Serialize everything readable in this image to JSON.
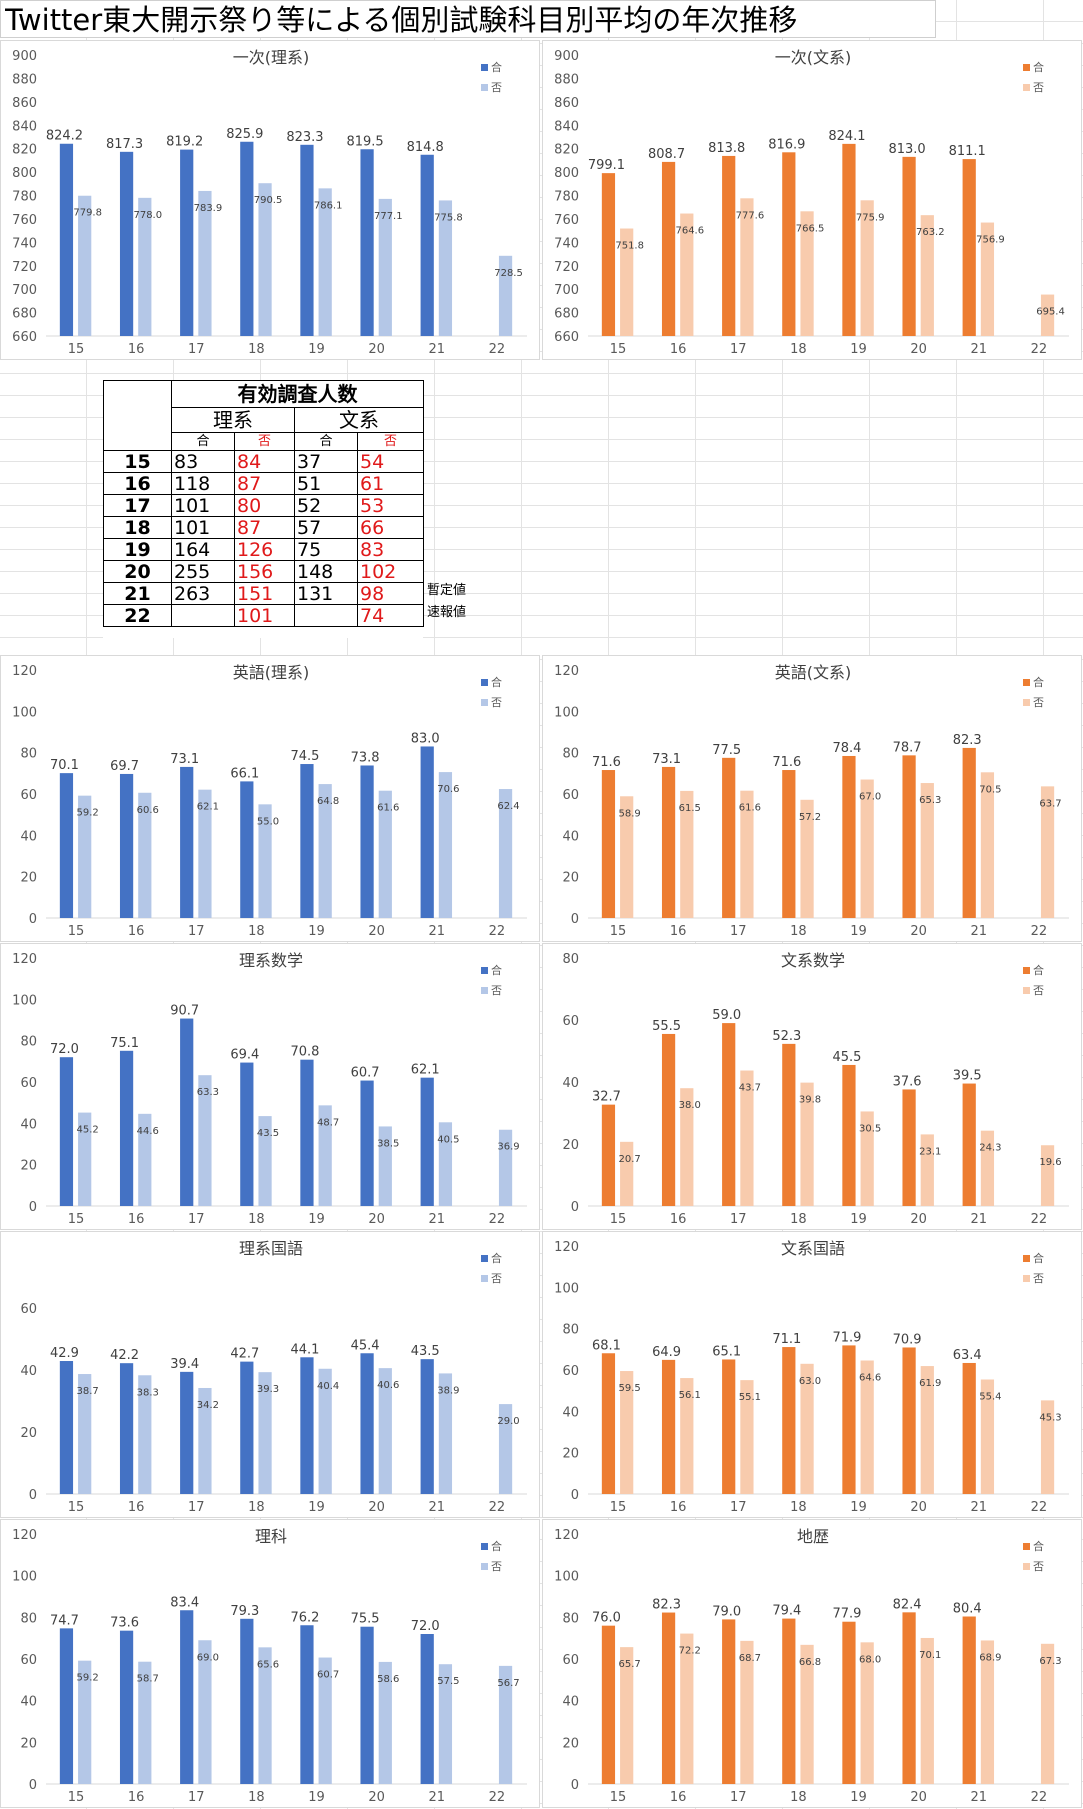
{
  "page_title": "Twitter東大開示祭り等による個別試験科目別平均の年次推移",
  "colors": {
    "rikei_pass": "#4472c4",
    "rikei_fail": "#b4c7e7",
    "bunkei_pass": "#ed7d31",
    "bunkei_fail": "#f8cbad"
  },
  "survey_table": {
    "title": "有効調査人数",
    "group_rikei": "理系",
    "group_bunkei": "文系",
    "pass_label": "合",
    "fail_label": "否",
    "rows": [
      {
        "year": "15",
        "r_pass": "83",
        "r_fail": "84",
        "b_pass": "37",
        "b_fail": "54",
        "note": ""
      },
      {
        "year": "16",
        "r_pass": "118",
        "r_fail": "87",
        "b_pass": "51",
        "b_fail": "61",
        "note": ""
      },
      {
        "year": "17",
        "r_pass": "101",
        "r_fail": "80",
        "b_pass": "52",
        "b_fail": "53",
        "note": ""
      },
      {
        "year": "18",
        "r_pass": "101",
        "r_fail": "87",
        "b_pass": "57",
        "b_fail": "66",
        "note": ""
      },
      {
        "year": "19",
        "r_pass": "164",
        "r_fail": "126",
        "b_pass": "75",
        "b_fail": "83",
        "note": ""
      },
      {
        "year": "20",
        "r_pass": "255",
        "r_fail": "156",
        "b_pass": "148",
        "b_fail": "102",
        "note": ""
      },
      {
        "year": "21",
        "r_pass": "263",
        "r_fail": "151",
        "b_pass": "131",
        "b_fail": "98",
        "note": "暫定値"
      },
      {
        "year": "22",
        "r_pass": "",
        "r_fail": "101",
        "b_pass": "",
        "b_fail": "74",
        "note": "速報値"
      }
    ]
  },
  "chart_data": [
    {
      "type": "bar",
      "title": "一次(理系)",
      "categories": [
        "15",
        "16",
        "17",
        "18",
        "19",
        "20",
        "21",
        "22"
      ],
      "ylim": [
        660,
        900
      ],
      "yticks": [
        660,
        680,
        700,
        720,
        740,
        760,
        780,
        800,
        820,
        840,
        860,
        880,
        900
      ],
      "legend_position": "top-right",
      "grid": false,
      "palette": "rikei",
      "series": [
        {
          "name": "合",
          "values": [
            824.2,
            817.3,
            819.2,
            825.9,
            823.3,
            819.5,
            814.8,
            null
          ]
        },
        {
          "name": "否",
          "values": [
            779.8,
            778.0,
            783.9,
            790.5,
            786.1,
            777.1,
            775.8,
            728.5
          ]
        }
      ]
    },
    {
      "type": "bar",
      "title": "一次(文系)",
      "categories": [
        "15",
        "16",
        "17",
        "18",
        "19",
        "20",
        "21",
        "22"
      ],
      "ylim": [
        660,
        900
      ],
      "yticks": [
        660,
        680,
        700,
        720,
        740,
        760,
        780,
        800,
        820,
        840,
        860,
        880,
        900
      ],
      "legend_position": "top-right",
      "grid": false,
      "palette": "bunkei",
      "series": [
        {
          "name": "合",
          "values": [
            799.1,
            808.7,
            813.8,
            816.9,
            824.1,
            813.0,
            811.1,
            null
          ]
        },
        {
          "name": "否",
          "values": [
            751.8,
            764.6,
            777.6,
            766.5,
            775.9,
            763.2,
            756.9,
            695.4
          ]
        }
      ]
    },
    {
      "type": "bar",
      "title": "英語(理系)",
      "categories": [
        "15",
        "16",
        "17",
        "18",
        "19",
        "20",
        "21",
        "22"
      ],
      "ylim": [
        0,
        120
      ],
      "yticks": [
        0,
        20,
        40,
        60,
        80,
        100,
        120
      ],
      "legend_position": "top-right",
      "grid": false,
      "palette": "rikei",
      "series": [
        {
          "name": "合",
          "values": [
            70.1,
            69.7,
            73.1,
            66.1,
            74.5,
            73.8,
            83.0,
            null
          ]
        },
        {
          "name": "否",
          "values": [
            59.2,
            60.6,
            62.1,
            55.0,
            64.8,
            61.6,
            70.6,
            62.4
          ]
        }
      ]
    },
    {
      "type": "bar",
      "title": "英語(文系)",
      "categories": [
        "15",
        "16",
        "17",
        "18",
        "19",
        "20",
        "21",
        "22"
      ],
      "ylim": [
        0,
        120
      ],
      "yticks": [
        0,
        20,
        40,
        60,
        80,
        100,
        120
      ],
      "legend_position": "top-right",
      "grid": false,
      "palette": "bunkei",
      "series": [
        {
          "name": "合",
          "values": [
            71.6,
            73.1,
            77.5,
            71.6,
            78.4,
            78.7,
            82.3,
            null
          ]
        },
        {
          "name": "否",
          "values": [
            58.9,
            61.5,
            61.6,
            57.2,
            67.0,
            65.3,
            70.5,
            63.7
          ]
        }
      ]
    },
    {
      "type": "bar",
      "title": "理系数学",
      "categories": [
        "15",
        "16",
        "17",
        "18",
        "19",
        "20",
        "21",
        "22"
      ],
      "ylim": [
        0,
        120
      ],
      "yticks": [
        0,
        20,
        40,
        60,
        80,
        100,
        120
      ],
      "legend_position": "top-right",
      "grid": false,
      "palette": "rikei",
      "series": [
        {
          "name": "合",
          "values": [
            72.0,
            75.1,
            90.7,
            69.4,
            70.8,
            60.7,
            62.1,
            null
          ]
        },
        {
          "name": "否",
          "values": [
            45.2,
            44.6,
            63.3,
            43.5,
            48.7,
            38.5,
            40.5,
            36.9
          ]
        }
      ]
    },
    {
      "type": "bar",
      "title": "文系数学",
      "categories": [
        "15",
        "16",
        "17",
        "18",
        "19",
        "20",
        "21",
        "22"
      ],
      "ylim": [
        0,
        80
      ],
      "yticks": [
        0,
        20,
        40,
        60,
        80
      ],
      "legend_position": "top-right",
      "grid": false,
      "palette": "bunkei",
      "series": [
        {
          "name": "合",
          "values": [
            32.7,
            55.5,
            59.0,
            52.3,
            45.5,
            37.6,
            39.5,
            null
          ]
        },
        {
          "name": "否",
          "values": [
            20.7,
            38.0,
            43.7,
            39.8,
            30.5,
            23.1,
            24.3,
            19.6
          ]
        }
      ]
    },
    {
      "type": "bar",
      "title": "理系国語",
      "categories": [
        "15",
        "16",
        "17",
        "18",
        "19",
        "20",
        "21",
        "22"
      ],
      "ylim": [
        0,
        80
      ],
      "yticks": [
        0,
        20,
        40,
        60
      ],
      "legend_position": "top-right",
      "grid": false,
      "palette": "rikei",
      "series": [
        {
          "name": "合",
          "values": [
            42.9,
            42.2,
            39.4,
            42.7,
            44.1,
            45.4,
            43.5,
            null
          ]
        },
        {
          "name": "否",
          "values": [
            38.7,
            38.3,
            34.2,
            39.3,
            40.4,
            40.6,
            38.9,
            29.0
          ]
        }
      ]
    },
    {
      "type": "bar",
      "title": "文系国語",
      "categories": [
        "15",
        "16",
        "17",
        "18",
        "19",
        "20",
        "21",
        "22"
      ],
      "ylim": [
        0,
        120
      ],
      "yticks": [
        0,
        20,
        40,
        60,
        80,
        100,
        120
      ],
      "legend_position": "top-right",
      "grid": false,
      "palette": "bunkei",
      "series": [
        {
          "name": "合",
          "values": [
            68.1,
            64.9,
            65.1,
            71.1,
            71.9,
            70.9,
            63.4,
            null
          ]
        },
        {
          "name": "否",
          "values": [
            59.5,
            56.1,
            55.1,
            63.0,
            64.6,
            61.9,
            55.4,
            45.3
          ]
        }
      ]
    },
    {
      "type": "bar",
      "title": "理科",
      "categories": [
        "15",
        "16",
        "17",
        "18",
        "19",
        "20",
        "21",
        "22"
      ],
      "ylim": [
        0,
        120
      ],
      "yticks": [
        0,
        20,
        40,
        60,
        80,
        100,
        120
      ],
      "legend_position": "top-right",
      "grid": false,
      "palette": "rikei",
      "series": [
        {
          "name": "合",
          "values": [
            74.7,
            73.6,
            83.4,
            79.3,
            76.2,
            75.5,
            72.0,
            null
          ]
        },
        {
          "name": "否",
          "values": [
            59.2,
            58.7,
            69.0,
            65.6,
            60.7,
            58.6,
            57.5,
            56.7
          ]
        }
      ]
    },
    {
      "type": "bar",
      "title": "地歴",
      "categories": [
        "15",
        "16",
        "17",
        "18",
        "19",
        "20",
        "21",
        "22"
      ],
      "ylim": [
        0,
        120
      ],
      "yticks": [
        0,
        20,
        40,
        60,
        80,
        100,
        120
      ],
      "legend_position": "top-right",
      "grid": false,
      "palette": "bunkei",
      "series": [
        {
          "name": "合",
          "values": [
            76.0,
            82.3,
            79.0,
            79.4,
            77.9,
            82.4,
            80.4,
            null
          ]
        },
        {
          "name": "否",
          "values": [
            65.7,
            72.2,
            68.7,
            66.8,
            68.0,
            70.1,
            68.9,
            67.3
          ]
        }
      ]
    }
  ]
}
